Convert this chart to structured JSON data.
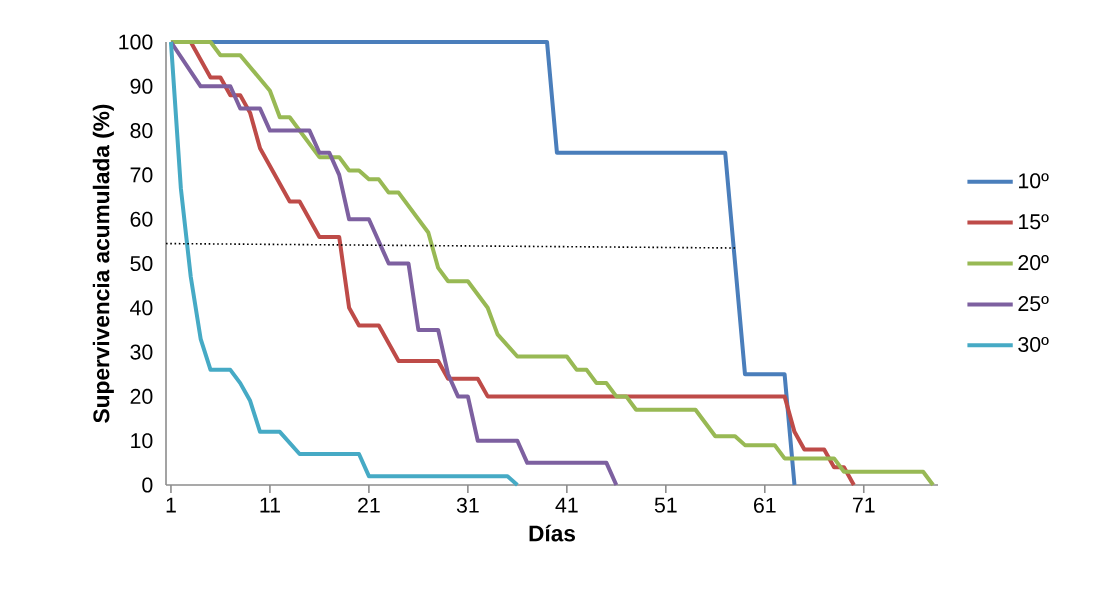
{
  "chart_data": {
    "type": "line",
    "xlabel": "Días",
    "ylabel": "Supervivencia acumulada (%)",
    "xlim": [
      0.5,
      78.5
    ],
    "xticks": [
      1,
      11,
      21,
      31,
      41,
      51,
      61,
      71
    ],
    "ylim": [
      0,
      100
    ],
    "yticks": [
      0,
      10,
      20,
      30,
      40,
      50,
      60,
      70,
      80,
      90,
      100
    ],
    "grid": false,
    "legend": "right",
    "marker": "none",
    "line_style": "solid",
    "series": [
      {
        "name": "10º",
        "color": "#4a7ebb",
        "x": [
          1,
          39,
          40,
          57,
          59,
          63,
          64
        ],
        "values": [
          100,
          100,
          75,
          75,
          25,
          25,
          0
        ]
      },
      {
        "name": "15º",
        "color": "#be4b48",
        "x": [
          1,
          3,
          4,
          5,
          6,
          7,
          8,
          9,
          10,
          13,
          14,
          16,
          18,
          19,
          20,
          22,
          24,
          28,
          29,
          32,
          33,
          63,
          64,
          65,
          67,
          68,
          69,
          70
        ],
        "values": [
          100,
          100,
          96,
          92,
          92,
          88,
          88,
          84,
          76,
          64,
          64,
          56,
          56,
          40,
          36,
          36,
          28,
          28,
          24,
          24,
          20,
          20,
          12,
          8,
          8,
          4,
          4,
          0
        ]
      },
      {
        "name": "20º",
        "color": "#98b954",
        "x": [
          1,
          5,
          6,
          8,
          11,
          12,
          13,
          16,
          18,
          19,
          20,
          21,
          22,
          23,
          24,
          27,
          28,
          29,
          31,
          33,
          34,
          36,
          41,
          42,
          43,
          44,
          45,
          46,
          47,
          48,
          54,
          56,
          58,
          59,
          62,
          63,
          68,
          69,
          77,
          78
        ],
        "values": [
          100,
          100,
          97,
          97,
          89,
          83,
          83,
          74,
          74,
          71,
          71,
          69,
          69,
          66,
          66,
          57,
          49,
          46,
          46,
          40,
          34,
          29,
          29,
          26,
          26,
          23,
          23,
          20,
          20,
          17,
          17,
          11,
          11,
          9,
          9,
          6,
          6,
          3,
          3,
          0
        ]
      },
      {
        "name": "25º",
        "color": "#7d60a0",
        "x": [
          1,
          4,
          7,
          8,
          10,
          11,
          15,
          16,
          17,
          18,
          19,
          21,
          23,
          25,
          26,
          28,
          29,
          30,
          31,
          32,
          36,
          37,
          45,
          46
        ],
        "values": [
          100,
          90,
          90,
          85,
          85,
          80,
          80,
          75,
          75,
          70,
          60,
          60,
          50,
          50,
          35,
          35,
          25,
          20,
          20,
          10,
          10,
          5,
          5,
          0
        ]
      },
      {
        "name": "30º",
        "color": "#46aac5",
        "x": [
          1,
          2,
          3,
          4,
          5,
          7,
          8,
          9,
          10,
          12,
          14,
          20,
          21,
          35,
          36
        ],
        "values": [
          100,
          67,
          47,
          33,
          26,
          26,
          23,
          19,
          12,
          12,
          7,
          7,
          2,
          2,
          0
        ]
      },
      {
        "type": "line",
        "color": "#000000",
        "line_style": "dotted",
        "x": [
          0.5,
          58
        ],
        "values": [
          54.5,
          53.5
        ]
      }
    ]
  }
}
